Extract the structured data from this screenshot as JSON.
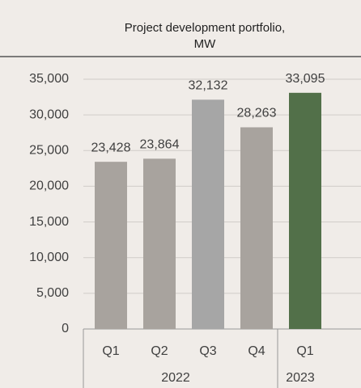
{
  "chart_data": {
    "type": "bar",
    "title": "Project development portfolio, MW",
    "categories": [
      "Q1",
      "Q2",
      "Q3",
      "Q4",
      "Q1"
    ],
    "x_groups": [
      {
        "label": "2022",
        "span": 4
      },
      {
        "label": "2023",
        "span": 1
      }
    ],
    "values": [
      23428,
      23864,
      32132,
      28263,
      33095
    ],
    "value_labels": [
      "23,428",
      "23,864",
      "32,132",
      "28,263",
      "33,095"
    ],
    "colors": [
      "#a8a39e",
      "#a8a39e",
      "#a6a6a6",
      "#a8a39e",
      "#527049"
    ],
    "ylim": [
      0,
      35000
    ],
    "yticks": [
      0,
      {
        "value": 5000,
        "label": "5,000"
      },
      {
        "value": 10000,
        "label": "10,000"
      },
      {
        "value": 15000,
        "label": "15,000"
      },
      {
        "value": 20000,
        "label": "20,000"
      },
      {
        "value": 25000,
        "label": "25,000"
      },
      {
        "value": 30000,
        "label": "30,000"
      },
      {
        "value": 35000,
        "label": "35,000"
      }
    ],
    "grid": true
  }
}
